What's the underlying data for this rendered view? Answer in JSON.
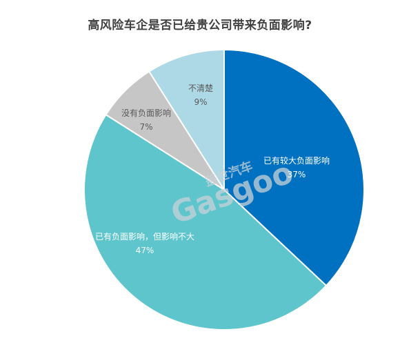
{
  "chart_data": {
    "type": "pie",
    "title": "高风险车企是否已给贵公司带来负面影响?",
    "slices": [
      {
        "label": "已有较大负面影响",
        "value": 37,
        "value_label": "37%",
        "color": "#0070C0"
      },
      {
        "label": "已有负面影响，但影响不大",
        "value": 47,
        "value_label": "47%",
        "color": "#5EC5CC"
      },
      {
        "label": "没有负面影响",
        "value": 7,
        "value_label": "7%",
        "color": "#C6C6C6"
      },
      {
        "label": "不清楚",
        "value": 9,
        "value_label": "9%",
        "color": "#ADD8E6"
      }
    ],
    "start_angle_deg": 0,
    "direction": "clockwise"
  },
  "watermark": {
    "text_cn": "盖世汽车",
    "text_en": "Gasgoo",
    "color": "#C8D2D8"
  }
}
